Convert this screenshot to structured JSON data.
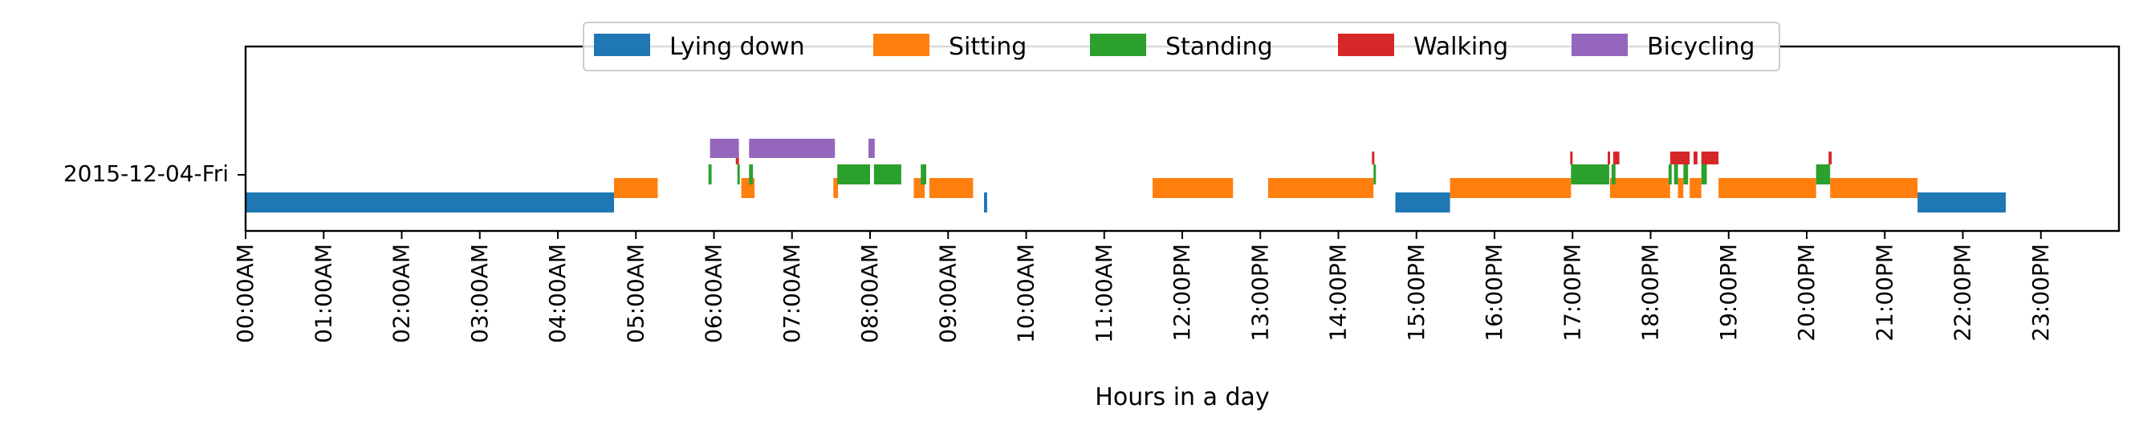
{
  "chart_data": {
    "type": "timeline",
    "title": "",
    "xlabel": "Hours in a day",
    "ylabel": "",
    "xlim": [
      0,
      24
    ],
    "category_label": "2015-12-04-Fri",
    "x_tick_labels": [
      "00:00AM",
      "01:00AM",
      "02:00AM",
      "03:00AM",
      "04:00AM",
      "05:00AM",
      "06:00AM",
      "07:00AM",
      "08:00AM",
      "09:00AM",
      "10:00AM",
      "11:00AM",
      "12:00PM",
      "13:00PM",
      "14:00PM",
      "15:00PM",
      "16:00PM",
      "17:00PM",
      "18:00PM",
      "19:00PM",
      "20:00PM",
      "21:00PM",
      "22:00PM",
      "23:00PM"
    ],
    "legend_position": "top-center",
    "series": [
      {
        "name": "Lying down",
        "color": "#1f77b4",
        "segments": [
          [
            0.0,
            4.72
          ],
          [
            9.46,
            9.5
          ],
          [
            14.73,
            15.43
          ],
          [
            21.42,
            22.55
          ]
        ]
      },
      {
        "name": "Sitting",
        "color": "#ff7f0e",
        "segments": [
          [
            4.72,
            5.28
          ],
          [
            6.35,
            6.52
          ],
          [
            7.53,
            7.59
          ],
          [
            8.56,
            8.7
          ],
          [
            8.76,
            9.32
          ],
          [
            11.62,
            12.65
          ],
          [
            13.1,
            14.45
          ],
          [
            15.43,
            16.98
          ],
          [
            17.48,
            18.25
          ],
          [
            18.35,
            18.42
          ],
          [
            18.5,
            18.65
          ],
          [
            18.87,
            20.12
          ],
          [
            20.3,
            21.42
          ]
        ]
      },
      {
        "name": "Standing",
        "color": "#2ca02c",
        "segments": [
          [
            5.93,
            5.97
          ],
          [
            6.3,
            6.32
          ],
          [
            6.45,
            6.5
          ],
          [
            7.58,
            8.0
          ],
          [
            8.05,
            8.4
          ],
          [
            8.65,
            8.72
          ],
          [
            14.45,
            14.48
          ],
          [
            16.98,
            17.47
          ],
          [
            17.5,
            17.55
          ],
          [
            18.23,
            18.27
          ],
          [
            18.3,
            18.35
          ],
          [
            18.42,
            18.48
          ],
          [
            18.65,
            18.72
          ],
          [
            20.12,
            20.3
          ]
        ]
      },
      {
        "name": "Walking",
        "color": "#d62728",
        "segments": [
          [
            6.28,
            6.32
          ],
          [
            14.43,
            14.46
          ],
          [
            16.97,
            17.0
          ],
          [
            17.45,
            17.48
          ],
          [
            17.52,
            17.6
          ],
          [
            18.25,
            18.5
          ],
          [
            18.55,
            18.6
          ],
          [
            18.65,
            18.87
          ],
          [
            20.28,
            20.32
          ]
        ]
      },
      {
        "name": "Bicycling",
        "color": "#9467bd",
        "segments": [
          [
            5.95,
            6.32
          ],
          [
            6.45,
            7.55
          ],
          [
            7.98,
            8.06
          ]
        ]
      }
    ]
  }
}
